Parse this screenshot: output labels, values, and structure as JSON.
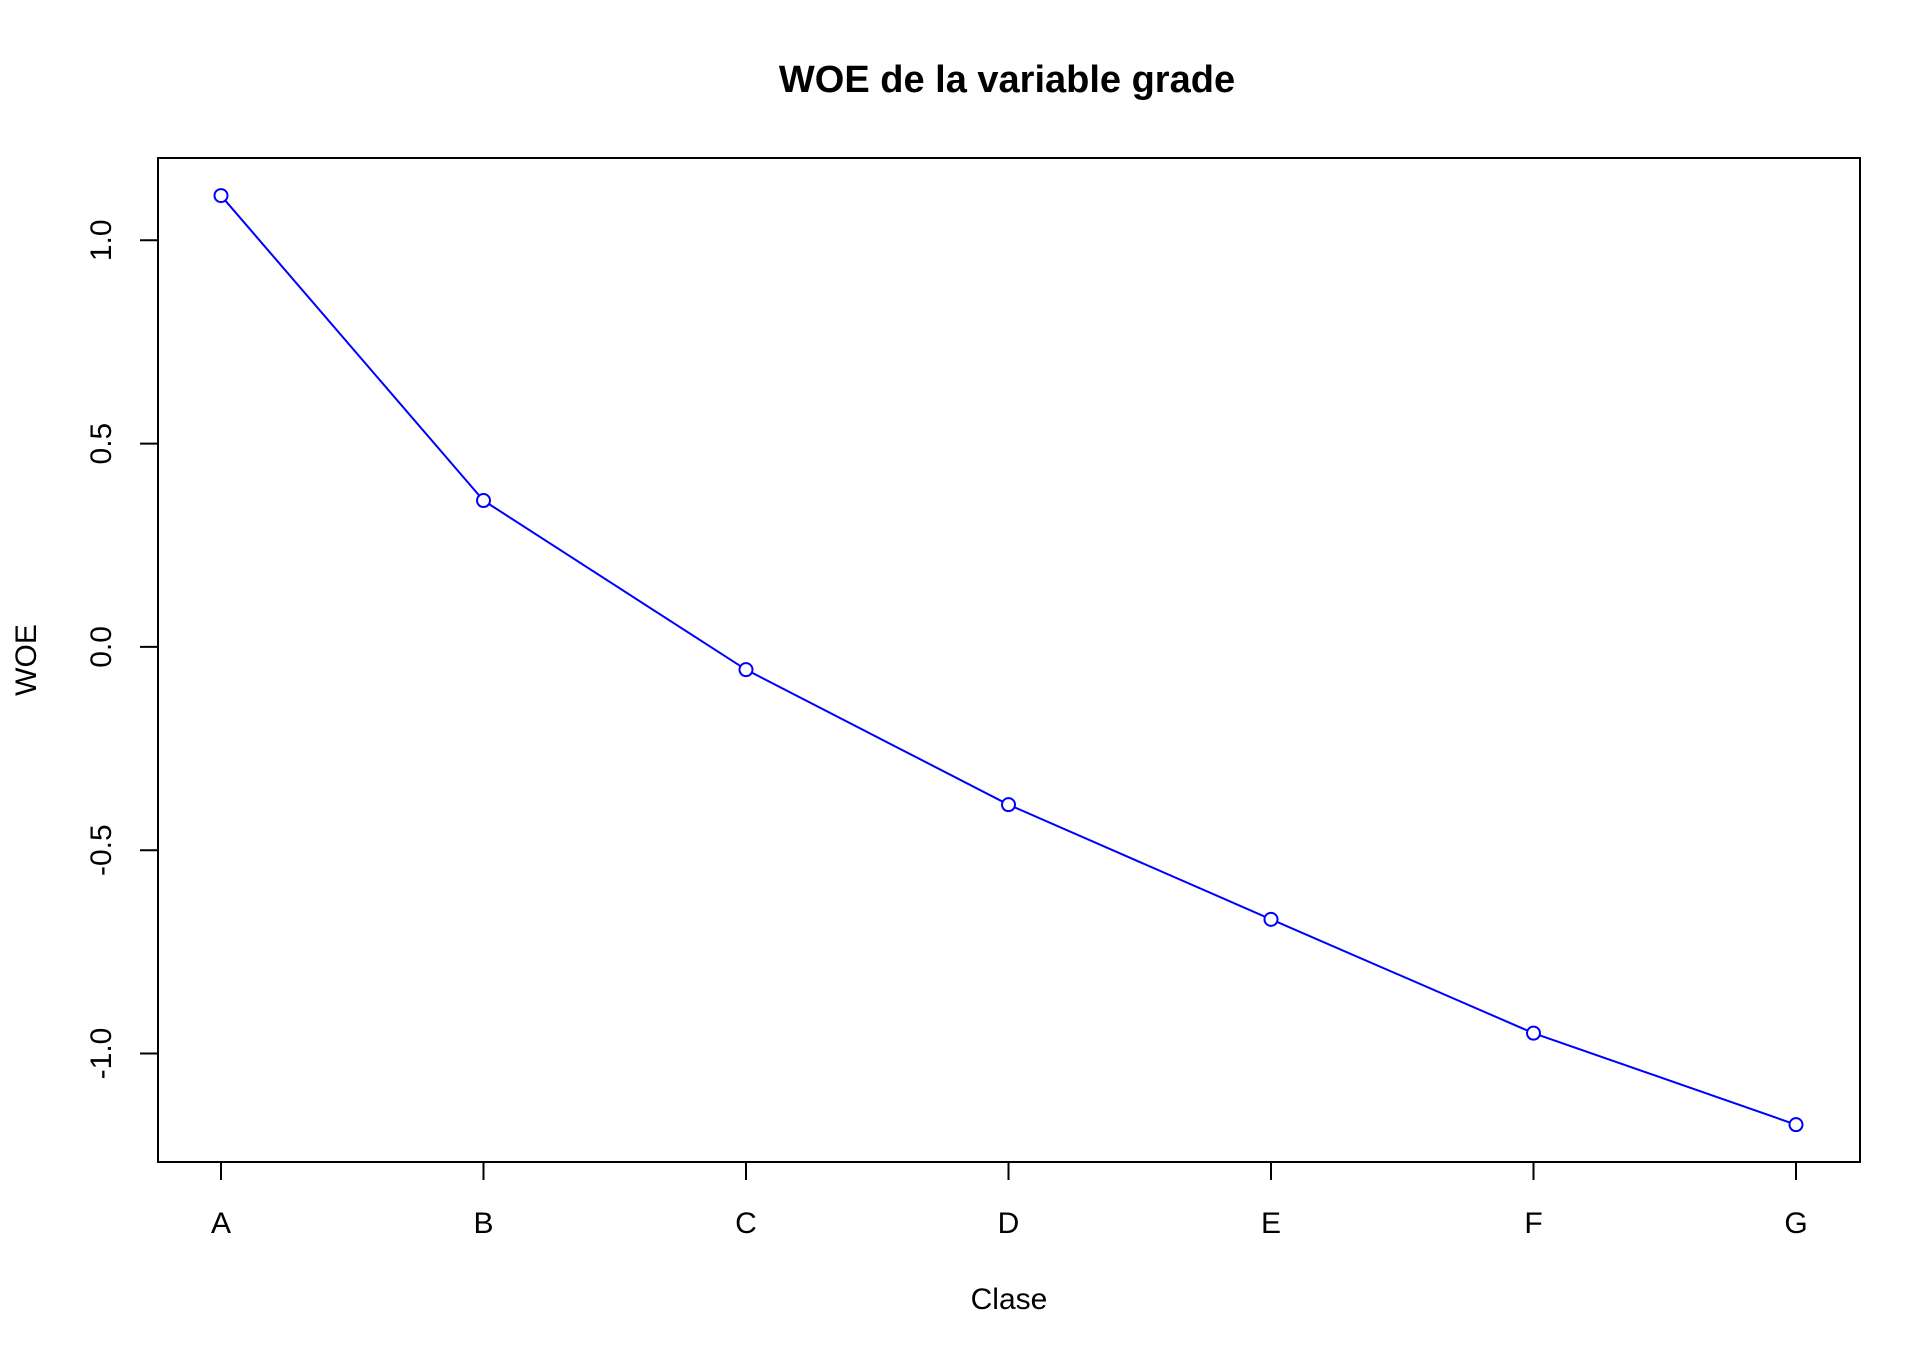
{
  "chart_data": {
    "type": "line",
    "title": "WOE de la variable grade",
    "xlabel": "Clase",
    "ylabel": "WOE",
    "categories": [
      "A",
      "B",
      "C",
      "D",
      "E",
      "F",
      "G"
    ],
    "series": [
      {
        "values": [
          1.11,
          0.36,
          -0.056,
          -0.388,
          -0.67,
          -0.95,
          -1.175
        ],
        "color": "#0000ff",
        "marker": "open-circle"
      }
    ],
    "y_ticks": [
      1.0,
      0.5,
      0.0,
      -0.5,
      -1.0
    ],
    "y_tick_labels": [
      "1.0",
      "0.5",
      "0.0",
      "-0.5",
      "-1.0"
    ],
    "ylim": [
      -1.24,
      1.2
    ],
    "grid": false,
    "legend": "none",
    "colors": {
      "series": "#0000ff",
      "axes": "#000000",
      "background": "#ffffff"
    }
  }
}
